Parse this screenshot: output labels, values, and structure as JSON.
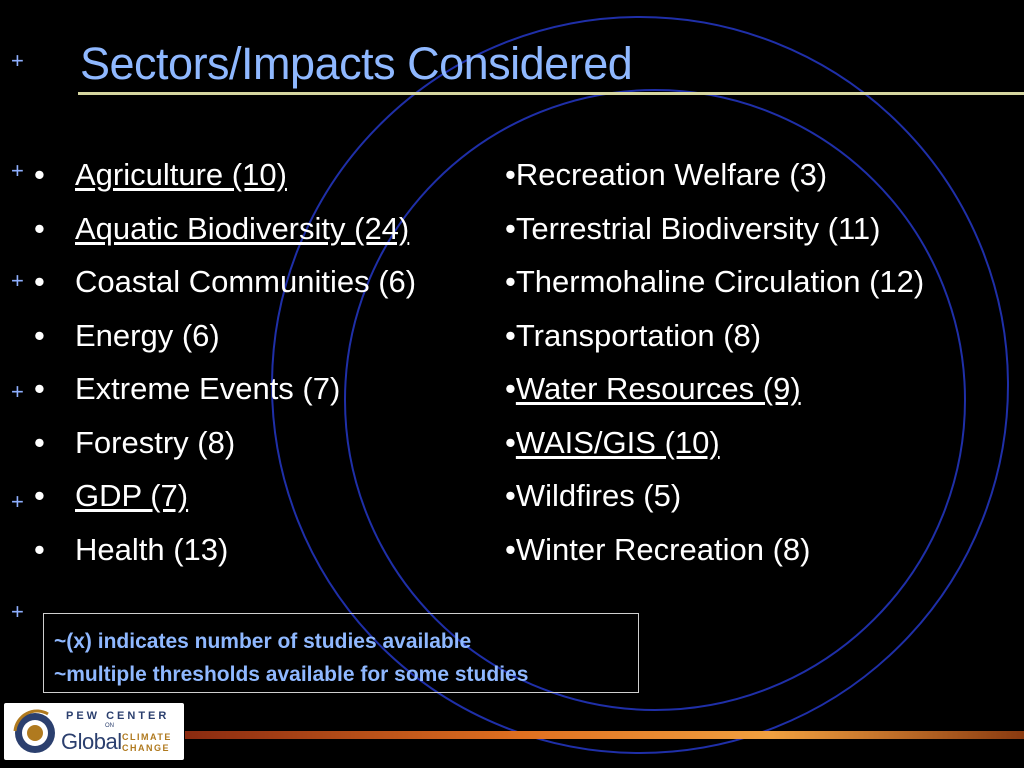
{
  "slide": {
    "title": "Sectors/Impacts Considered",
    "decor_plus": [
      "+",
      "+",
      "+",
      "+",
      "+",
      "+"
    ],
    "left_items": [
      {
        "bullet": "•",
        "text": "Agriculture (10)"
      },
      {
        "bullet": "•",
        "text": "Aquatic Biodiversity (24)"
      },
      {
        "bullet": "•",
        "text": "Coastal Communities (6)"
      },
      {
        "bullet": "•",
        "text": "Energy (6)"
      },
      {
        "bullet": "•",
        "text": "Extreme Events (7)"
      },
      {
        "bullet": "•",
        "text": "Forestry (8)"
      },
      {
        "bullet": "•",
        "text": "GDP (7)"
      },
      {
        "bullet": "•",
        "text": "Health (13)"
      }
    ],
    "right_items": [
      {
        "bullet": "•",
        "text": "Recreation Welfare (3)"
      },
      {
        "bullet": "•",
        "text": "Terrestrial Biodiversity (11)"
      },
      {
        "bullet": "•",
        "text": "Thermohaline Circulation (12)"
      },
      {
        "bullet": "•",
        "text": "Transportation (8)"
      },
      {
        "bullet": "•",
        "text": "Water Resources (9)"
      },
      {
        "bullet": "•",
        "text": "WAIS/GIS (10)"
      },
      {
        "bullet": "•",
        "text": "Wildfires (5)"
      },
      {
        "bullet": "•",
        "text": "Winter Recreation (8)"
      }
    ],
    "note": {
      "line1": "~(x) indicates number of studies available",
      "line2": "~multiple thresholds available for some studies"
    }
  },
  "logo": {
    "top": "PEW CENTER",
    "on": "ON",
    "global": "Global",
    "climate": "CLIMATE",
    "change": "CHANGE"
  },
  "colors": {
    "background": "#000000",
    "title": "#8fb8ff",
    "title_rule": "#d6d6a0",
    "body_text": "#ffffff",
    "note_text": "#8fb8ff",
    "circles": "#1f2fa8",
    "plus": "#8fb0ff"
  }
}
